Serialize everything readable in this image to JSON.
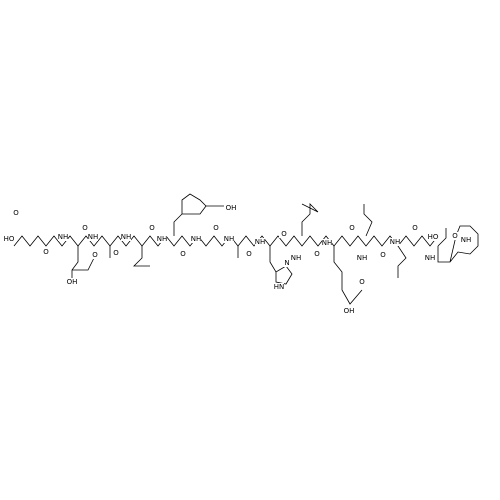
{
  "atoms": [
    "HO",
    "O",
    "O",
    "NH",
    "O",
    "OH",
    "O",
    "NH",
    "O",
    "NH",
    "O",
    "NH",
    "OH",
    "O",
    "NH",
    "O",
    "NH",
    "O",
    "NH",
    "N",
    "HN",
    "O",
    "NH",
    "O",
    "NH",
    "O",
    "OH",
    "O",
    "NH",
    "O",
    "NH",
    "O",
    "NH",
    "HO",
    "O",
    "NH"
  ]
}
